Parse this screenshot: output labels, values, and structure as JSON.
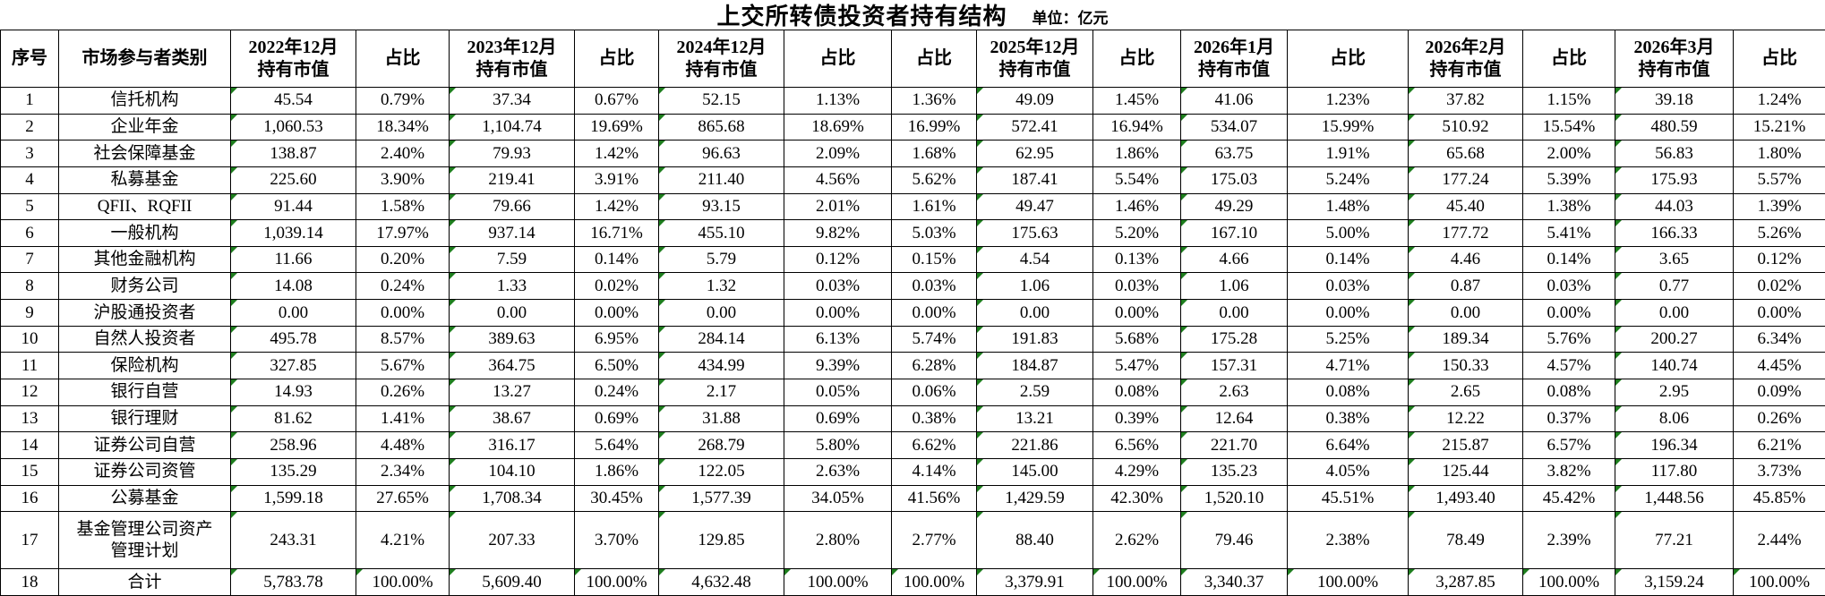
{
  "title": "上交所转债投资者持有结构",
  "unit_label": "单位：亿元",
  "colors": {
    "marker_green": "#1e7e1e"
  },
  "table": {
    "columns": [
      "序号",
      "市场参与者类别",
      "2022年12月\n持有市值",
      "占比",
      "2023年12月\n持有市值",
      "占比",
      "2024年12月\n持有市值",
      "占比",
      "占比",
      "2025年12月\n持有市值",
      "占比",
      "2026年1月\n持有市值",
      "占比",
      "2026年2月\n持有市值",
      "占比",
      "2026年3月\n持有市值",
      "占比"
    ],
    "rows": [
      {
        "no": "1",
        "category": "信托机构",
        "values": [
          "45.54",
          "0.79%",
          "37.34",
          "0.67%",
          "52.15",
          "1.13%",
          "1.36%",
          "49.09",
          "1.45%",
          "41.06",
          "1.23%",
          "37.82",
          "1.15%",
          "39.18",
          "1.24%"
        ]
      },
      {
        "no": "2",
        "category": "企业年金",
        "values": [
          "1,060.53",
          "18.34%",
          "1,104.74",
          "19.69%",
          "865.68",
          "18.69%",
          "16.99%",
          "572.41",
          "16.94%",
          "534.07",
          "15.99%",
          "510.92",
          "15.54%",
          "480.59",
          "15.21%"
        ]
      },
      {
        "no": "3",
        "category": "社会保障基金",
        "values": [
          "138.87",
          "2.40%",
          "79.93",
          "1.42%",
          "96.63",
          "2.09%",
          "1.68%",
          "62.95",
          "1.86%",
          "63.75",
          "1.91%",
          "65.68",
          "2.00%",
          "56.83",
          "1.80%"
        ]
      },
      {
        "no": "4",
        "category": "私募基金",
        "values": [
          "225.60",
          "3.90%",
          "219.41",
          "3.91%",
          "211.40",
          "4.56%",
          "5.62%",
          "187.41",
          "5.54%",
          "175.03",
          "5.24%",
          "177.24",
          "5.39%",
          "175.93",
          "5.57%"
        ]
      },
      {
        "no": "5",
        "category": "QFII、RQFII",
        "values": [
          "91.44",
          "1.58%",
          "79.66",
          "1.42%",
          "93.15",
          "2.01%",
          "1.61%",
          "49.47",
          "1.46%",
          "49.29",
          "1.48%",
          "45.40",
          "1.38%",
          "44.03",
          "1.39%"
        ]
      },
      {
        "no": "6",
        "category": "一般机构",
        "values": [
          "1,039.14",
          "17.97%",
          "937.14",
          "16.71%",
          "455.10",
          "9.82%",
          "5.03%",
          "175.63",
          "5.20%",
          "167.10",
          "5.00%",
          "177.72",
          "5.41%",
          "166.33",
          "5.26%"
        ]
      },
      {
        "no": "7",
        "category": "其他金融机构",
        "values": [
          "11.66",
          "0.20%",
          "7.59",
          "0.14%",
          "5.79",
          "0.12%",
          "0.15%",
          "4.54",
          "0.13%",
          "4.66",
          "0.14%",
          "4.46",
          "0.14%",
          "3.65",
          "0.12%"
        ]
      },
      {
        "no": "8",
        "category": "财务公司",
        "values": [
          "14.08",
          "0.24%",
          "1.33",
          "0.02%",
          "1.32",
          "0.03%",
          "0.03%",
          "1.06",
          "0.03%",
          "1.06",
          "0.03%",
          "0.87",
          "0.03%",
          "0.77",
          "0.02%"
        ]
      },
      {
        "no": "9",
        "category": "沪股通投资者",
        "values": [
          "0.00",
          "0.00%",
          "0.00",
          "0.00%",
          "0.00",
          "0.00%",
          "0.00%",
          "0.00",
          "0.00%",
          "0.00",
          "0.00%",
          "0.00",
          "0.00%",
          "0.00",
          "0.00%"
        ]
      },
      {
        "no": "10",
        "category": "自然人投资者",
        "values": [
          "495.78",
          "8.57%",
          "389.63",
          "6.95%",
          "284.14",
          "6.13%",
          "5.74%",
          "191.83",
          "5.68%",
          "175.28",
          "5.25%",
          "189.34",
          "5.76%",
          "200.27",
          "6.34%"
        ]
      },
      {
        "no": "11",
        "category": "保险机构",
        "values": [
          "327.85",
          "5.67%",
          "364.75",
          "6.50%",
          "434.99",
          "9.39%",
          "6.28%",
          "184.87",
          "5.47%",
          "157.31",
          "4.71%",
          "150.33",
          "4.57%",
          "140.74",
          "4.45%"
        ]
      },
      {
        "no": "12",
        "category": "银行自营",
        "values": [
          "14.93",
          "0.26%",
          "13.27",
          "0.24%",
          "2.17",
          "0.05%",
          "0.06%",
          "2.59",
          "0.08%",
          "2.63",
          "0.08%",
          "2.65",
          "0.08%",
          "2.95",
          "0.09%"
        ]
      },
      {
        "no": "13",
        "category": "银行理财",
        "values": [
          "81.62",
          "1.41%",
          "38.67",
          "0.69%",
          "31.88",
          "0.69%",
          "0.38%",
          "13.21",
          "0.39%",
          "12.64",
          "0.38%",
          "12.22",
          "0.37%",
          "8.06",
          "0.26%"
        ]
      },
      {
        "no": "14",
        "category": "证券公司自营",
        "values": [
          "258.96",
          "4.48%",
          "316.17",
          "5.64%",
          "268.79",
          "5.80%",
          "6.62%",
          "221.86",
          "6.56%",
          "221.70",
          "6.64%",
          "215.87",
          "6.57%",
          "196.34",
          "6.21%"
        ]
      },
      {
        "no": "15",
        "category": "证券公司资管",
        "values": [
          "135.29",
          "2.34%",
          "104.10",
          "1.86%",
          "122.05",
          "2.63%",
          "4.14%",
          "145.00",
          "4.29%",
          "135.23",
          "4.05%",
          "125.44",
          "3.82%",
          "117.80",
          "3.73%"
        ]
      },
      {
        "no": "16",
        "category": "公募基金",
        "values": [
          "1,599.18",
          "27.65%",
          "1,708.34",
          "30.45%",
          "1,577.39",
          "34.05%",
          "41.56%",
          "1,429.59",
          "42.30%",
          "1,520.10",
          "45.51%",
          "1,493.40",
          "45.42%",
          "1,448.56",
          "45.85%"
        ]
      },
      {
        "no": "17",
        "category": "基金管理公司资产\n管理计划",
        "values": [
          "243.31",
          "4.21%",
          "207.33",
          "3.70%",
          "129.85",
          "2.80%",
          "2.77%",
          "88.40",
          "2.62%",
          "79.46",
          "2.38%",
          "78.49",
          "2.39%",
          "77.21",
          "2.44%"
        ]
      },
      {
        "no": "18",
        "category": "合计",
        "all_marked": true,
        "values": [
          "5,783.78",
          "100.00%",
          "5,609.40",
          "100.00%",
          "4,632.48",
          "100.00%",
          "100.00%",
          "3,379.91",
          "100.00%",
          "3,340.37",
          "100.00%",
          "3,287.85",
          "100.00%",
          "3,159.24",
          "100.00%"
        ]
      }
    ]
  }
}
